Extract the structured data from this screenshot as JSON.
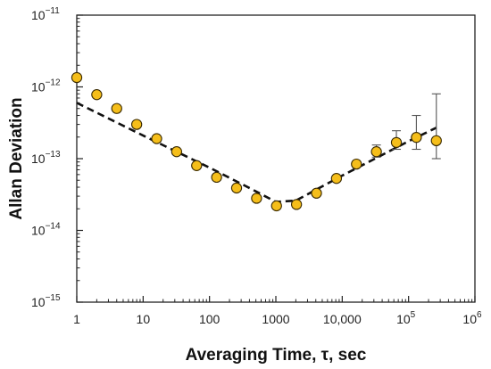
{
  "chart_data": {
    "type": "scatter",
    "title": "",
    "xlabel": "Averaging Time, τ, sec",
    "ylabel": "Allan Deviation",
    "xscale": "log",
    "yscale": "log",
    "xlim": [
      1,
      1000000
    ],
    "ylim": [
      1e-15,
      1e-11
    ],
    "grid": false,
    "legend": "none",
    "x_ticks": [
      {
        "value": 1,
        "base": "1",
        "exp": ""
      },
      {
        "value": 10,
        "base": "10",
        "exp": ""
      },
      {
        "value": 100,
        "base": "100",
        "exp": ""
      },
      {
        "value": 1000,
        "base": "1000",
        "exp": ""
      },
      {
        "value": 10000,
        "base": "10,000",
        "exp": ""
      },
      {
        "value": 100000,
        "base": "10",
        "exp": "5"
      },
      {
        "value": 1000000,
        "base": "10",
        "exp": "6"
      }
    ],
    "y_ticks": [
      {
        "value": 1e-11,
        "base": "10",
        "exp": "−11"
      },
      {
        "value": 1e-12,
        "base": "10",
        "exp": "−12"
      },
      {
        "value": 1e-13,
        "base": "10",
        "exp": "−13"
      },
      {
        "value": 1e-14,
        "base": "10",
        "exp": "−14"
      },
      {
        "value": 1e-15,
        "base": "10",
        "exp": "−15"
      }
    ],
    "series": [
      {
        "marker": "circle",
        "color": "#F5BE1A",
        "edge_color": "#3a2a00",
        "points": [
          {
            "x": 1,
            "y": 1.35e-12
          },
          {
            "x": 2,
            "y": 7.8e-13
          },
          {
            "x": 4,
            "y": 5e-13
          },
          {
            "x": 8,
            "y": 3e-13
          },
          {
            "x": 16,
            "y": 1.9e-13
          },
          {
            "x": 32,
            "y": 1.25e-13
          },
          {
            "x": 64,
            "y": 8e-14
          },
          {
            "x": 128,
            "y": 5.5e-14
          },
          {
            "x": 256,
            "y": 3.9e-14
          },
          {
            "x": 512,
            "y": 2.8e-14
          },
          {
            "x": 1024,
            "y": 2.2e-14
          },
          {
            "x": 2048,
            "y": 2.3e-14
          },
          {
            "x": 4096,
            "y": 3.3e-14
          },
          {
            "x": 8192,
            "y": 5.3e-14
          },
          {
            "x": 16384,
            "y": 8.4e-14
          },
          {
            "x": 32768,
            "y": 1.25e-13,
            "err_low": 1.05e-13,
            "err_high": 1.55e-13
          },
          {
            "x": 65536,
            "y": 1.68e-13,
            "err_low": 1.35e-13,
            "err_high": 2.45e-13
          },
          {
            "x": 131072,
            "y": 1.98e-13,
            "err_low": 1.35e-13,
            "err_high": 4e-13
          },
          {
            "x": 262144,
            "y": 1.78e-13,
            "err_low": 1e-13,
            "err_high": 8e-13
          }
        ]
      }
    ],
    "fit_line": {
      "style": "dashed",
      "color": "#111111",
      "points": [
        {
          "x": 1,
          "y": 6e-13
        },
        {
          "x": 10,
          "y": 2.1e-13
        },
        {
          "x": 100,
          "y": 7.5e-14
        },
        {
          "x": 400,
          "y": 3.9e-14
        },
        {
          "x": 1000,
          "y": 2.5e-14
        },
        {
          "x": 2000,
          "y": 2.6e-14
        },
        {
          "x": 10000,
          "y": 5.8e-14
        },
        {
          "x": 100000,
          "y": 1.75e-13
        },
        {
          "x": 262144,
          "y": 2.7e-13
        }
      ]
    }
  }
}
